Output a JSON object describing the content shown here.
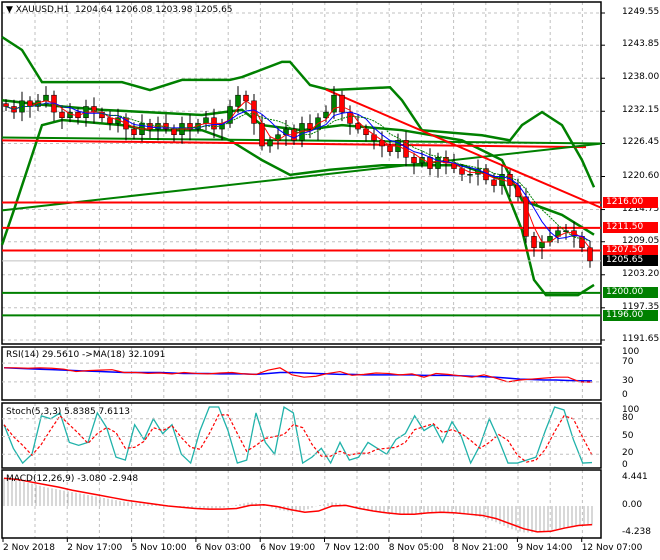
{
  "header": {
    "symbol": "XAUUSD,H1",
    "open": "1204.64",
    "high": "1206.08",
    "low": "1203.98",
    "close": "1205.65"
  },
  "price_axis": [
    "1249.55",
    "1243.85",
    "1238.00",
    "1232.15",
    "1226.45",
    "1220.60",
    "1214.75",
    "1209.05",
    "1203.20",
    "1197.35",
    "1191.65"
  ],
  "levels": [
    {
      "label": "1216.00",
      "price": 1216.0,
      "color": "#ff0000"
    },
    {
      "label": "1211.50",
      "price": 1211.5,
      "color": "#ff0000"
    },
    {
      "label": "1207.50",
      "price": 1207.5,
      "color": "#ff0000"
    },
    {
      "label": "1205.65",
      "price": 1205.65,
      "color": "#000000"
    },
    {
      "label": "1200.00",
      "price": 1200.0,
      "color": "#008000"
    },
    {
      "label": "1196.00",
      "price": 1196.0,
      "color": "#008000"
    }
  ],
  "time_axis": [
    "2 Nov 2018",
    "2 Nov 17:00",
    "5 Nov 10:00",
    "6 Nov 03:00",
    "6 Nov 19:00",
    "7 Nov 12:00",
    "8 Nov 05:00",
    "8 Nov 21:00",
    "9 Nov 14:00",
    "12 Nov 07:00"
  ],
  "rsi": {
    "title": "RSI(14) 29.5610  ->MA(18) 32.1091",
    "axis": [
      "100",
      "70",
      "30",
      "0"
    ]
  },
  "stoch": {
    "title": "Stoch(5,3,3) 5.8385 7.6113",
    "axis": [
      "100",
      "80",
      "50",
      "20",
      "0"
    ]
  },
  "macd": {
    "title": "MACD(12,26,9) -3.080 -2.948",
    "axis": [
      "4.441",
      "0.00",
      "-4.238"
    ]
  },
  "colors": {
    "bull": "#008000",
    "bear": "#ff0000",
    "band": "#008000",
    "stoch_k": "#20b2aa",
    "rsi_ma": "#0000ff"
  },
  "chart_data": {
    "type": "line",
    "title": "XAUUSD,H1",
    "ylim": [
      1191.65,
      1249.55
    ],
    "closes": [
      1233,
      1232,
      1234,
      1233,
      1234,
      1235,
      1232,
      1231,
      1232,
      1231,
      1233,
      1232,
      1231,
      1230,
      1231,
      1229,
      1228,
      1230,
      1229,
      1230,
      1229,
      1228,
      1230,
      1229,
      1230,
      1231,
      1229,
      1230,
      1233,
      1235,
      1234,
      1230,
      1226,
      1227,
      1228,
      1229,
      1227,
      1230,
      1229,
      1231,
      1232,
      1235,
      1232,
      1230,
      1229,
      1228,
      1227,
      1226,
      1225,
      1227,
      1224,
      1223,
      1224,
      1222,
      1224,
      1223,
      1222,
      1221,
      1221,
      1222,
      1220,
      1219,
      1221,
      1219,
      1217,
      1210,
      1208,
      1209,
      1210,
      1211,
      1211,
      1210,
      1208,
      1205.65
    ],
    "bollinger_upper": [
      [
        0,
        1245.3
      ],
      [
        5,
        1243.0
      ],
      [
        10,
        1237.3
      ],
      [
        30,
        1237.3
      ],
      [
        37,
        1235.9
      ],
      [
        45,
        1237.7
      ],
      [
        57,
        1237.7
      ],
      [
        60,
        1238.2
      ],
      [
        70,
        1240.9
      ],
      [
        72,
        1240.9
      ],
      [
        77,
        1236.8
      ],
      [
        82,
        1235.9
      ],
      [
        97,
        1236.4
      ],
      [
        100,
        1234.1
      ],
      [
        105,
        1228.8
      ],
      [
        120,
        1227.9
      ],
      [
        127,
        1227.0
      ],
      [
        130,
        1229.7
      ],
      [
        135,
        1232.0
      ],
      [
        140,
        1229.7
      ],
      [
        145,
        1223.5
      ],
      [
        148,
        1218.7
      ]
    ],
    "bollinger_middle": [
      [
        0,
        1234.1
      ],
      [
        10,
        1233.3
      ],
      [
        25,
        1232.4
      ],
      [
        50,
        1231.5
      ],
      [
        60,
        1232.4
      ],
      [
        65,
        1229.7
      ],
      [
        75,
        1228.8
      ],
      [
        85,
        1229.7
      ],
      [
        100,
        1228.8
      ],
      [
        115,
        1227.0
      ],
      [
        125,
        1223.5
      ],
      [
        130,
        1216.4
      ],
      [
        140,
        1213.8
      ],
      [
        148,
        1210.3
      ]
    ],
    "bollinger_lower": [
      [
        0,
        1208.5
      ],
      [
        3,
        1214.7
      ],
      [
        10,
        1229.7
      ],
      [
        15,
        1230.6
      ],
      [
        30,
        1229.7
      ],
      [
        37,
        1228.8
      ],
      [
        50,
        1228.8
      ],
      [
        57,
        1227.0
      ],
      [
        65,
        1223.5
      ],
      [
        72,
        1220.9
      ],
      [
        82,
        1221.8
      ],
      [
        95,
        1222.6
      ],
      [
        115,
        1222.6
      ],
      [
        125,
        1220.0
      ],
      [
        130,
        1211.1
      ],
      [
        133,
        1202.3
      ],
      [
        136,
        1199.6
      ],
      [
        144,
        1199.6
      ],
      [
        148,
        1201.4
      ]
    ],
    "trendlines": [
      {
        "color": "#ff0000",
        "from": [
          0,
          1227.0
        ],
        "to": [
          146,
          1225.8
        ]
      },
      {
        "color": "#008000",
        "from": [
          0,
          1227.5
        ],
        "to": [
          150,
          1226.45
        ]
      },
      {
        "color": "#008000",
        "from": [
          0,
          1214.6
        ],
        "to": [
          150,
          1226.45
        ]
      },
      {
        "color": "#ff0000",
        "from": [
          81,
          1236.0
        ],
        "to": [
          150,
          1215.0
        ]
      }
    ],
    "rsi_values": [
      60,
      60,
      59,
      60,
      59,
      57,
      52,
      54,
      55,
      56,
      50,
      50,
      48,
      49,
      47,
      50,
      48,
      47,
      49,
      50,
      47,
      46,
      55,
      60,
      45,
      40,
      42,
      48,
      52,
      44,
      46,
      49,
      48,
      45,
      47,
      40,
      48,
      46,
      43,
      40,
      45,
      38,
      30,
      34,
      36,
      38,
      40,
      40,
      30,
      29.56
    ],
    "rsi_ma": [
      60,
      59,
      58,
      57,
      56,
      55,
      54,
      53,
      52,
      51,
      50,
      50,
      50,
      50,
      49,
      48,
      48,
      48,
      47,
      47,
      47,
      46,
      48,
      50,
      50,
      49,
      48,
      47,
      46,
      46,
      45,
      45,
      45,
      45,
      45,
      44,
      44,
      44,
      43,
      42,
      41,
      40,
      38,
      36,
      35,
      34,
      34,
      33,
      32.5,
      32.1
    ],
    "stoch_k": [
      70,
      30,
      5,
      20,
      85,
      80,
      90,
      40,
      35,
      40,
      90,
      65,
      15,
      10,
      70,
      45,
      80,
      55,
      70,
      20,
      5,
      60,
      100,
      100,
      60,
      5,
      10,
      90,
      40,
      20,
      100,
      90,
      5,
      15,
      30,
      5,
      40,
      10,
      15,
      40,
      30,
      20,
      45,
      55,
      85,
      60,
      70,
      40,
      75,
      50,
      5,
      35,
      80,
      45,
      5,
      5,
      10,
      15,
      60,
      100,
      95,
      45,
      5,
      5.84
    ],
    "macd_hist": [
      4.4,
      4.0,
      3.6,
      3.0,
      2.6,
      2.2,
      1.8,
      1.4,
      1.0,
      0.6,
      0.4,
      0.2,
      0.0,
      -0.2,
      -0.3,
      -0.4,
      -0.3,
      0.2,
      0.6,
      0.3,
      -0.6,
      -0.9,
      -0.7,
      0.1,
      0.6,
      0.2,
      -0.5,
      -0.9,
      -1.2,
      -1.3,
      -1.3,
      -1.0,
      -0.9,
      -1.1,
      -1.4,
      -1.8,
      -2.6,
      -3.6,
      -4.2,
      -4.2,
      -3.8,
      -3.4,
      -3.1,
      -3.08
    ],
    "macd_signal": [
      4.4,
      4.2,
      3.8,
      3.4,
      3.0,
      2.5,
      2.1,
      1.7,
      1.3,
      0.9,
      0.6,
      0.3,
      0.0,
      -0.2,
      -0.4,
      -0.5,
      -0.5,
      -0.4,
      0.1,
      0.2,
      -0.1,
      -0.6,
      -1.0,
      -0.8,
      0.0,
      0.1,
      -0.4,
      -0.8,
      -1.1,
      -1.3,
      -1.3,
      -1.1,
      -1.0,
      -1.1,
      -1.3,
      -1.5,
      -2.0,
      -2.8,
      -3.6,
      -4.1,
      -4.0,
      -3.5,
      -3.1,
      -2.95
    ]
  }
}
